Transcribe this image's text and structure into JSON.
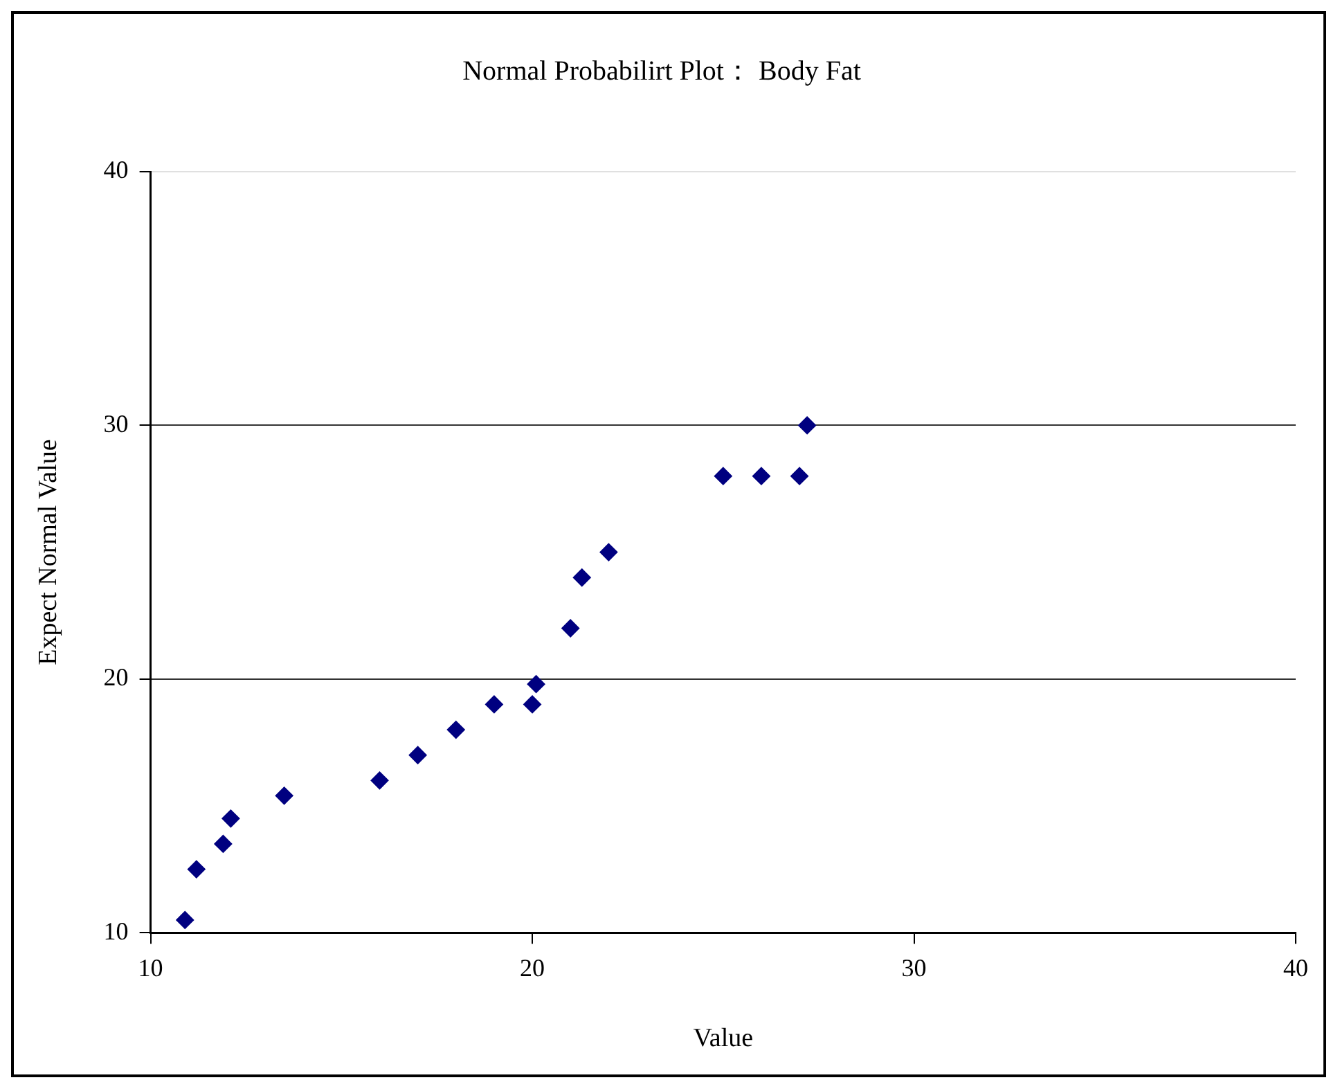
{
  "chart_data": {
    "type": "scatter",
    "title": "Normal Probabilirt Plot： Body Fat",
    "xlabel": "Value",
    "ylabel": "Expect Normal Value",
    "x": [
      10.9,
      11.2,
      11.9,
      12.1,
      13.5,
      16,
      17,
      18,
      19,
      20,
      20.1,
      21,
      21.3,
      22,
      25,
      26,
      27,
      27.2
    ],
    "series": [
      {
        "color": "#000080",
        "values": [
          10.5,
          12.5,
          13.5,
          14.5,
          15.4,
          16,
          17,
          18,
          19,
          19,
          19.8,
          22,
          24,
          25,
          28,
          28,
          28,
          30
        ]
      }
    ],
    "xlim": [
      10,
      40
    ],
    "xticks": [
      10,
      20,
      30,
      40
    ],
    "ylim": [
      10,
      40
    ],
    "yticks": [
      10,
      20,
      30,
      40
    ],
    "grid": "y",
    "marker": "diamond",
    "legend": false
  }
}
